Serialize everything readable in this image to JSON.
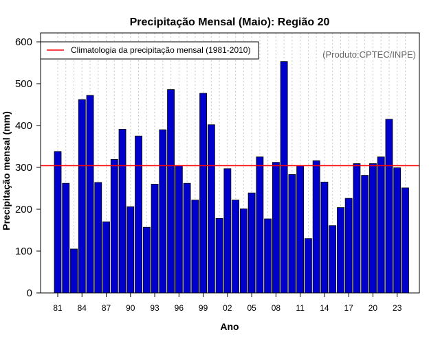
{
  "chart_data": {
    "type": "bar",
    "title": "Precipitação Mensal (Maio): Região 20",
    "xlabel": "Ano",
    "ylabel": "Precipitação mensal (mm)",
    "ylim": [
      0,
      600
    ],
    "yticks": [
      0,
      100,
      200,
      300,
      400,
      500,
      600
    ],
    "categories": [
      "81",
      "82",
      "83",
      "84",
      "85",
      "86",
      "87",
      "88",
      "89",
      "90",
      "91",
      "92",
      "93",
      "94",
      "95",
      "96",
      "97",
      "98",
      "99",
      "00",
      "01",
      "02",
      "03",
      "04",
      "05",
      "06",
      "07",
      "08",
      "09",
      "10",
      "11",
      "12",
      "13",
      "14",
      "15",
      "16",
      "17",
      "18",
      "19",
      "20",
      "21",
      "22",
      "23",
      "24"
    ],
    "xtick_labels": [
      "81",
      "84",
      "87",
      "90",
      "93",
      "96",
      "99",
      "02",
      "05",
      "08",
      "11",
      "14",
      "17",
      "20",
      "23"
    ],
    "values": [
      338,
      262,
      105,
      462,
      472,
      264,
      170,
      319,
      391,
      206,
      375,
      157,
      260,
      390,
      486,
      304,
      262,
      222,
      477,
      402,
      178,
      297,
      222,
      201,
      239,
      325,
      177,
      312,
      553,
      283,
      304,
      130,
      316,
      265,
      161,
      204,
      226,
      309,
      281,
      309,
      325,
      415,
      299,
      251
    ],
    "bar_color": "#0000CD",
    "climatology": {
      "value": 304,
      "label": "Climatologia da precipitação mensal (1981-2010)",
      "color": "#FF0000"
    },
    "legend_position": "top-left",
    "annotation": "(Produto:CPTEC/INPE)",
    "grid": "vertical-dotted"
  }
}
